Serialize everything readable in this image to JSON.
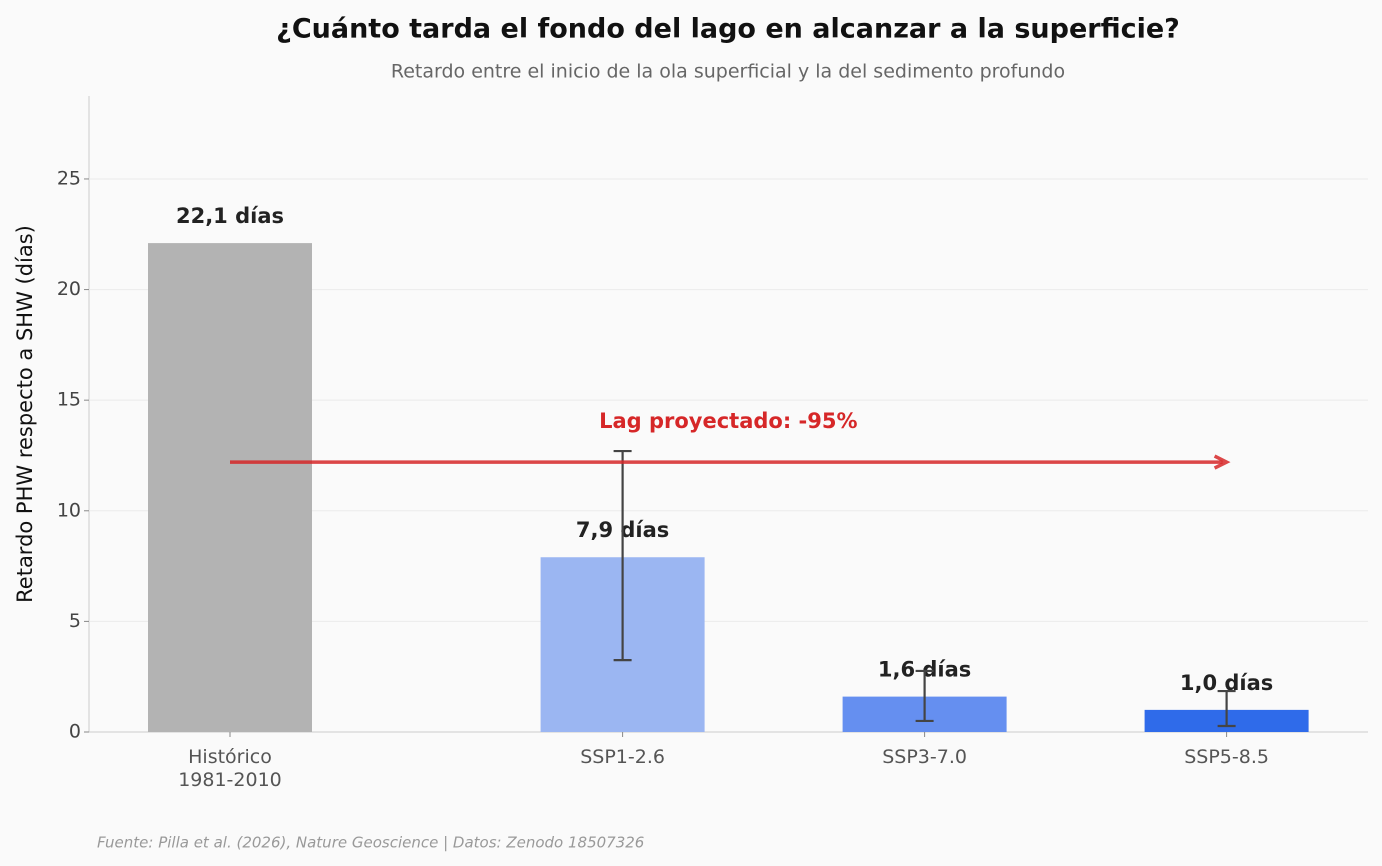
{
  "chart_data": {
    "type": "bar",
    "title": "¿Cuánto tarda el fondo del lago en alcanzar a la superficie?",
    "subtitle": "Retardo entre el inicio de la ola superficial y la del sedimento profundo",
    "y_label": "Retardo PHW respecto a SHW (días)",
    "categories": [
      "Histórico\n1981-2010",
      "SSP1-2.6",
      "SSP3-7.0",
      "SSP5-8.5"
    ],
    "values": [
      22.1,
      7.9,
      1.6,
      1.0
    ],
    "value_labels": [
      "22,1 días",
      "7,9 días",
      "1,6 días",
      "1,0 días"
    ],
    "error_low": [
      null,
      3.25,
      0.5,
      0.27
    ],
    "error_high": [
      null,
      12.7,
      2.76,
      1.85
    ],
    "colors": [
      "#b3b3b3",
      "#9bb6f2",
      "#658ff0",
      "#2f6bea"
    ],
    "ylim": [
      0,
      28.75
    ],
    "yticks": [
      0,
      5,
      10,
      15,
      20,
      25
    ],
    "grid": true,
    "annotation": {
      "text": "Lag proyectado: -95%",
      "y": 12.2,
      "color": "#d62728"
    },
    "source": "Fuente: Pilla et al. (2026), Nature Geoscience | Datos: Zenodo 18507326"
  }
}
